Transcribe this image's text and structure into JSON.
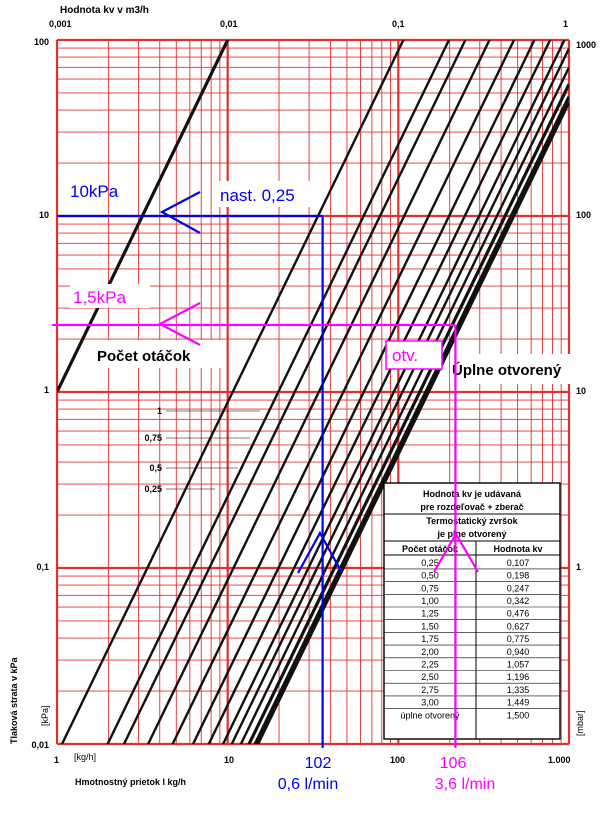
{
  "chart_data": {
    "type": "line",
    "scale": "log-log",
    "top_axis_title": "Hodnota kv v m3/h",
    "top_ticks": [
      "0,001",
      "0,01",
      "0,1",
      "1"
    ],
    "bottom_axis_title": "Hmotnostný prietok l kg/h",
    "bottom_ticks": [
      "1",
      "10",
      "100",
      "1.000"
    ],
    "bottom_unit": "[kg/h]",
    "left_axis_title": "Tlaková strata v kPa",
    "left_ticks": [
      "100",
      "10",
      "1",
      "0,1",
      "0,01"
    ],
    "left_unit": "[kPa]",
    "right_ticks": [
      "1000",
      "100",
      "10",
      "1"
    ],
    "right_unit": "[mbar]",
    "xlim": [
      1,
      1000
    ],
    "ylim": [
      0.01,
      100
    ],
    "grid": true,
    "kv_values": [
      0.107,
      0.198,
      0.247,
      0.342,
      0.476,
      0.627,
      0.775,
      0.94,
      1.057,
      1.196,
      1.335,
      1.449,
      1.5,
      0.01
    ],
    "turn_labels": [
      "1",
      "0,75",
      "0,5",
      "0,25"
    ],
    "label_turns": "Počet otáčok",
    "label_open": "Úplne otvorený",
    "table": {
      "header1": "Hodnota kv je udávaná",
      "header2": "pre rozdeľovač + zberač",
      "header3": "Termostatický zvršok",
      "header4": "je plne otvorený",
      "col1": "Počet otáčok",
      "col2": "Hodnota kv",
      "rows": [
        [
          "0,25",
          "0,107"
        ],
        [
          "0,50",
          "0,198"
        ],
        [
          "0,75",
          "0,247"
        ],
        [
          "1,00",
          "0,342"
        ],
        [
          "1,25",
          "0,476"
        ],
        [
          "1,50",
          "0,627"
        ],
        [
          "1,75",
          "0,775"
        ],
        [
          "2,00",
          "0,940"
        ],
        [
          "2,25",
          "1,057"
        ],
        [
          "2,50",
          "1,196"
        ],
        [
          "2,75",
          "1,335"
        ],
        [
          "3,00",
          "1,449"
        ],
        [
          "úplne otvorený",
          "1,500"
        ]
      ]
    },
    "annotations": {
      "blue_pressure": "10kPa",
      "blue_setting": "nast. 0,25",
      "blue_flow_kg": "102",
      "blue_flow_lmin": "0,6 l/min",
      "blue_x": 36,
      "blue_y": 10,
      "magenta_pressure": "1,5kPa",
      "magenta_setting": "otv.",
      "magenta_flow_kg": "106",
      "magenta_flow_lmin": "3,6 l/min",
      "magenta_x": 216,
      "magenta_y": 2.4,
      "blue_color": "#0000ee",
      "magenta_color": "#ff00ff"
    }
  }
}
